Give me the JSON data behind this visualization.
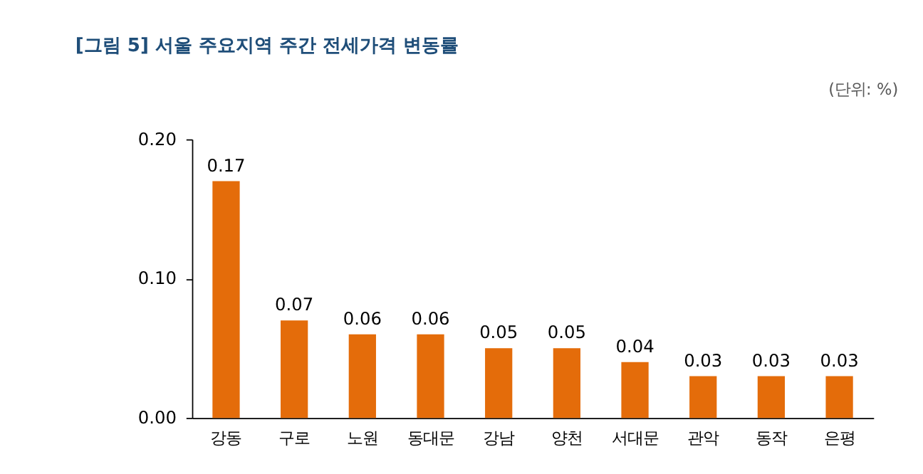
{
  "chart_data": {
    "type": "bar",
    "title": "[그림 5] 서울 주요지역 주간 전세가격 변동률",
    "annotations": [
      "(단위: %)"
    ],
    "categories": [
      "강동",
      "구로",
      "노원",
      "동대문",
      "강남",
      "양천",
      "서대문",
      "관악",
      "동작",
      "은평"
    ],
    "values": [
      0.17,
      0.07,
      0.06,
      0.06,
      0.05,
      0.05,
      0.04,
      0.03,
      0.03,
      0.03
    ],
    "color": "#e46c0a",
    "ylim": [
      0,
      0.2
    ],
    "yticks": [
      {
        "value": 0,
        "label": "0.00"
      },
      {
        "value": 0.1,
        "label": "0.10"
      },
      {
        "value": 0.2,
        "label": "0.20"
      }
    ],
    "data_labels": true
  }
}
